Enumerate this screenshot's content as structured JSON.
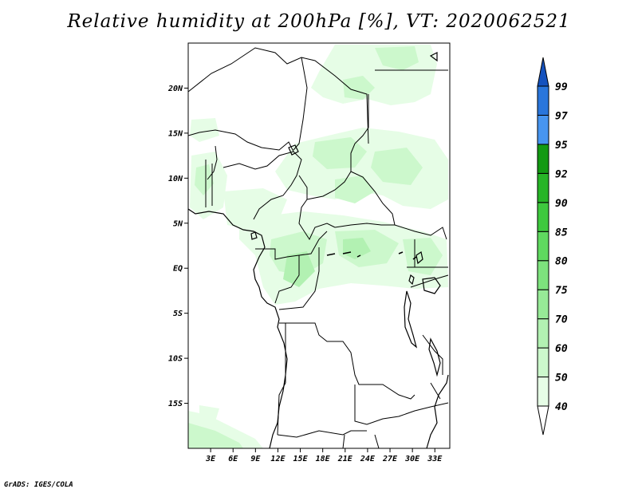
{
  "title": "Relative humidity at 200hPa [%], VT: 2020062521",
  "credit": "GrADS: IGES/COLA",
  "map": {
    "variable": "Relative humidity",
    "level": "200hPa",
    "units": "%",
    "valid_time": "2020062521",
    "lon_range": [
      0,
      35
    ],
    "lat_range": [
      -20,
      25
    ],
    "lat_ticks": [
      {
        "value": 20,
        "label": "20N"
      },
      {
        "value": 15,
        "label": "15N"
      },
      {
        "value": 10,
        "label": "10N"
      },
      {
        "value": 5,
        "label": "5N"
      },
      {
        "value": 0,
        "label": "EQ"
      },
      {
        "value": -5,
        "label": "5S"
      },
      {
        "value": -10,
        "label": "10S"
      },
      {
        "value": -15,
        "label": "15S"
      }
    ],
    "lon_ticks": [
      {
        "value": 3,
        "label": "3E"
      },
      {
        "value": 6,
        "label": "6E"
      },
      {
        "value": 9,
        "label": "9E"
      },
      {
        "value": 12,
        "label": "12E"
      },
      {
        "value": 15,
        "label": "15E"
      },
      {
        "value": 18,
        "label": "18E"
      },
      {
        "value": 21,
        "label": "21E"
      },
      {
        "value": 24,
        "label": "24E"
      },
      {
        "value": 27,
        "label": "27E"
      },
      {
        "value": 30,
        "label": "30E"
      },
      {
        "value": 33,
        "label": "33E"
      }
    ]
  },
  "colorbar": {
    "levels": [
      "40",
      "50",
      "60",
      "70",
      "75",
      "80",
      "85",
      "90",
      "92",
      "95",
      "97",
      "99"
    ],
    "colors": [
      "#ffffff",
      "#e6fde6",
      "#ccf8cc",
      "#b2f1b2",
      "#97ea97",
      "#7de27d",
      "#5fd95f",
      "#3ec93e",
      "#27b527",
      "#139a13",
      "#4795f0",
      "#2a76dc",
      "#1552be"
    ]
  }
}
